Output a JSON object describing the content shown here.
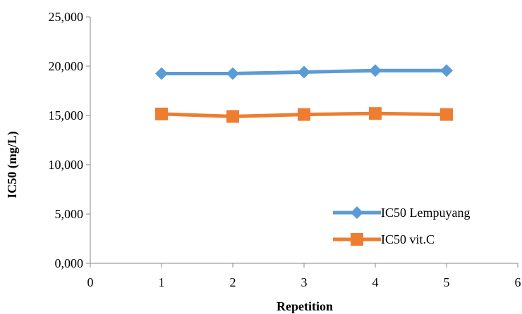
{
  "chart_data": {
    "type": "line",
    "title": "",
    "xlabel": "Repetition",
    "ylabel": "IC50 (mg/L)",
    "xlim": [
      0,
      6
    ],
    "ylim": [
      0,
      25
    ],
    "x_ticks": [
      0,
      1,
      2,
      3,
      4,
      5,
      6
    ],
    "x_tick_labels": [
      "0",
      "1",
      "2",
      "3",
      "4",
      "5",
      "6"
    ],
    "y_ticks": [
      0,
      5,
      10,
      15,
      20,
      25
    ],
    "y_tick_labels": [
      "0,000",
      "5,000",
      "10,000",
      "15,000",
      "20,000",
      "25,000"
    ],
    "grid": false,
    "legend_position": "bottom-right",
    "series": [
      {
        "name": "IC50  Lempuyang",
        "marker": "diamond",
        "color": "#5B9BD5",
        "x": [
          1,
          2,
          3,
          4,
          5
        ],
        "y": [
          19.25,
          19.25,
          19.4,
          19.55,
          19.55
        ]
      },
      {
        "name": "IC50  vit.C",
        "marker": "square",
        "color": "#ED7D31",
        "x": [
          1,
          2,
          3,
          4,
          5
        ],
        "y": [
          15.15,
          14.9,
          15.1,
          15.2,
          15.1
        ]
      }
    ]
  }
}
